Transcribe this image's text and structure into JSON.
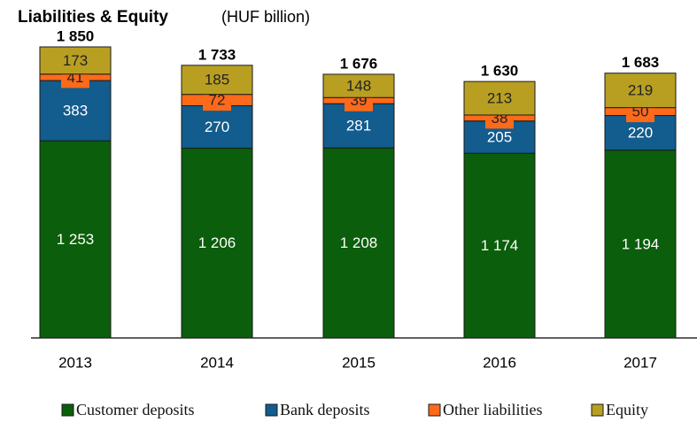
{
  "chart_data": {
    "type": "stacked-bar",
    "title": "Liabilities & Equity",
    "subtitle": "(HUF billion)",
    "categories": [
      "2013",
      "2014",
      "2015",
      "2016",
      "2017"
    ],
    "series": [
      {
        "name": "Customer deposits",
        "color": "#0b5e0b",
        "values": [
          1253,
          1206,
          1208,
          1174,
          1194
        ],
        "value_labels": [
          "1 253",
          "1 206",
          "1 208",
          "1 174",
          "1 194"
        ]
      },
      {
        "name": "Bank deposits",
        "color": "#125c8e",
        "values": [
          383,
          270,
          281,
          205,
          220
        ],
        "value_labels": [
          "383",
          "270",
          "281",
          "205",
          "220"
        ]
      },
      {
        "name": "Other liabilities",
        "color": "#ff6a1a",
        "values": [
          41,
          72,
          39,
          38,
          50
        ],
        "value_labels": [
          "41",
          "72",
          "39",
          "38",
          "50"
        ]
      },
      {
        "name": "Equity",
        "color": "#b89f22",
        "values": [
          173,
          185,
          148,
          213,
          219
        ],
        "value_labels": [
          "173",
          "185",
          "148",
          "213",
          "219"
        ]
      }
    ],
    "totals": [
      1850,
      1733,
      1676,
      1630,
      1683
    ],
    "total_labels": [
      "1 850",
      "1 733",
      "1 676",
      "1 630",
      "1 683"
    ]
  }
}
